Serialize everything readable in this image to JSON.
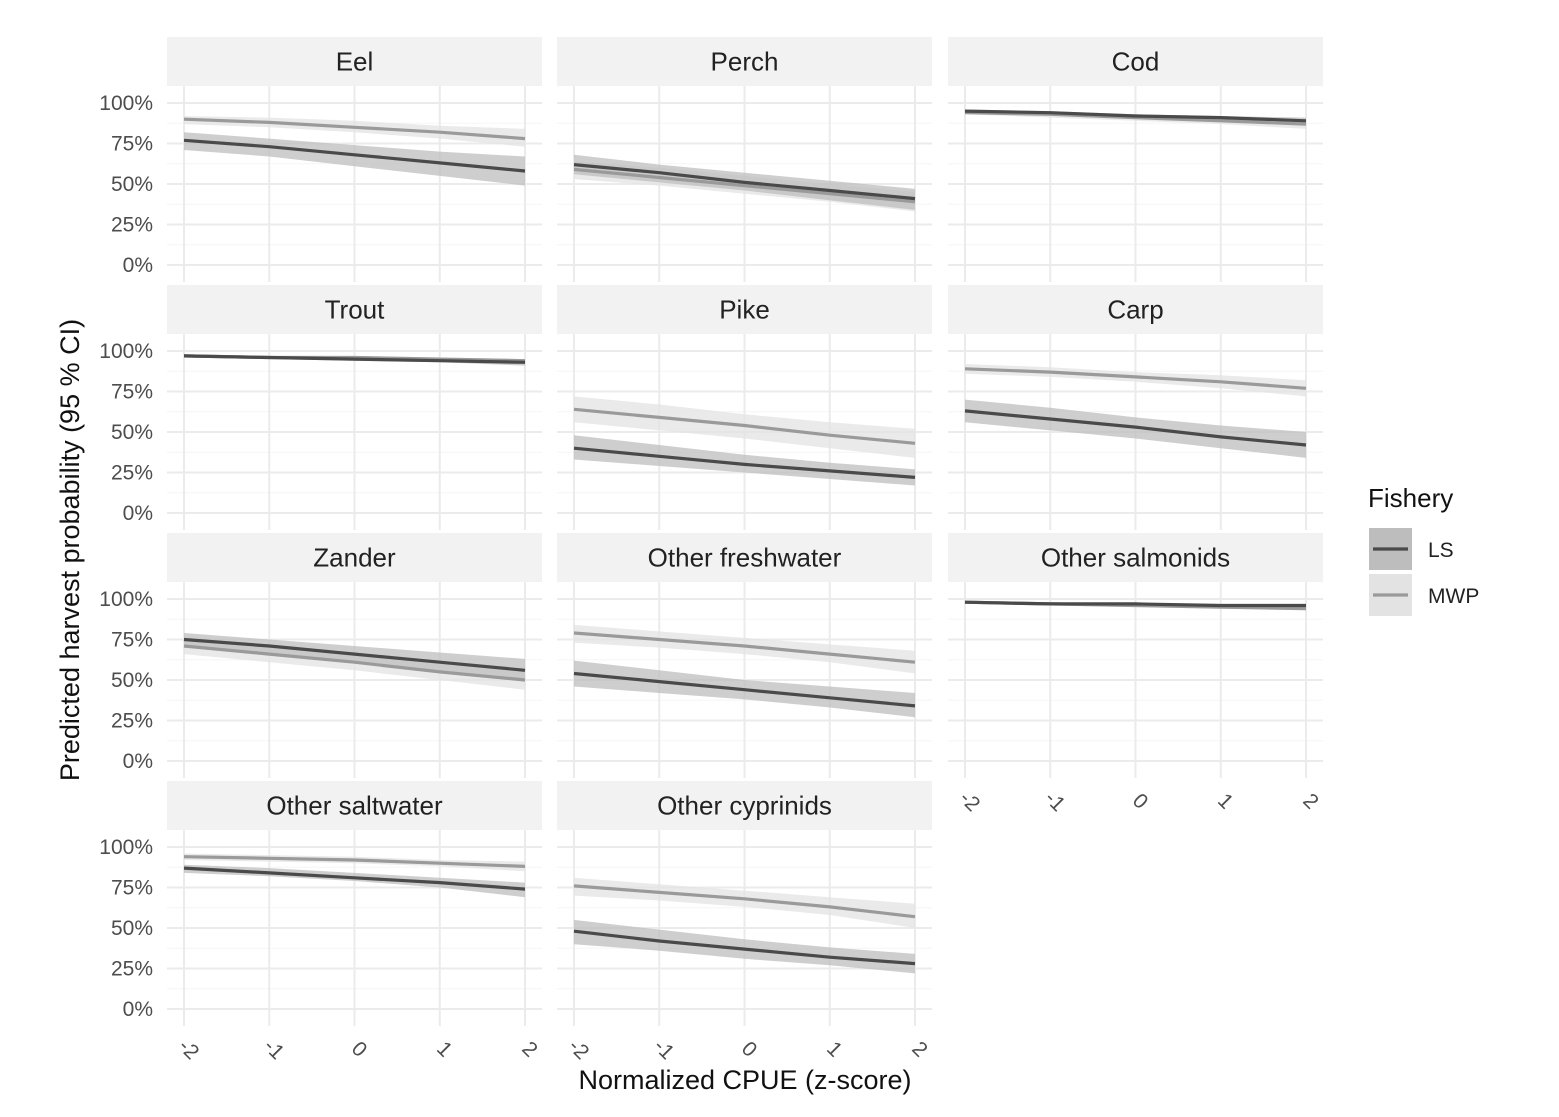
{
  "chart_data": {
    "type": "line",
    "facets": [
      "Eel",
      "Perch",
      "Cod",
      "Trout",
      "Pike",
      "Carp",
      "Zander",
      "Other freshwater",
      "Other salmonids",
      "Other saltwater",
      "Other cyprinids"
    ],
    "xlabel": "Normalized CPUE (z-score)",
    "ylabel": "Predicted harvest probability (95 % CI)",
    "x_ticks": [
      "-2",
      "-1",
      "0",
      "1",
      "2"
    ],
    "y_ticks": [
      "0%",
      "25%",
      "50%",
      "75%",
      "100%"
    ],
    "xlim": [
      -2,
      2
    ],
    "ylim": [
      0,
      1
    ],
    "legend": {
      "title": "Fishery",
      "position": "right",
      "entries": [
        {
          "label": "LS",
          "line_color": "#4a4a4a",
          "band_color": "#bdbdbd"
        },
        {
          "label": "MWP",
          "line_color": "#9a9a9a",
          "band_color": "#e3e3e3"
        }
      ]
    },
    "x": [
      -2,
      -1,
      0,
      1,
      2
    ],
    "panels": [
      {
        "facet": "Eel",
        "series": [
          {
            "name": "LS",
            "y": [
              0.77,
              0.73,
              0.68,
              0.63,
              0.58
            ],
            "lower": [
              0.71,
              0.67,
              0.61,
              0.55,
              0.49
            ],
            "upper": [
              0.82,
              0.78,
              0.74,
              0.7,
              0.67
            ]
          },
          {
            "name": "MWP",
            "y": [
              0.9,
              0.88,
              0.85,
              0.82,
              0.78
            ],
            "lower": [
              0.87,
              0.85,
              0.82,
              0.78,
              0.73
            ],
            "upper": [
              0.92,
              0.91,
              0.89,
              0.86,
              0.84
            ]
          }
        ]
      },
      {
        "facet": "Perch",
        "series": [
          {
            "name": "LS",
            "y": [
              0.62,
              0.57,
              0.51,
              0.46,
              0.41
            ],
            "lower": [
              0.56,
              0.51,
              0.46,
              0.4,
              0.34
            ],
            "upper": [
              0.68,
              0.62,
              0.57,
              0.52,
              0.47
            ]
          },
          {
            "name": "MWP",
            "y": [
              0.59,
              0.54,
              0.49,
              0.44,
              0.39
            ],
            "lower": [
              0.53,
              0.49,
              0.44,
              0.39,
              0.33
            ],
            "upper": [
              0.64,
              0.6,
              0.55,
              0.5,
              0.45
            ]
          }
        ]
      },
      {
        "facet": "Cod",
        "series": [
          {
            "name": "LS",
            "y": [
              0.95,
              0.94,
              0.92,
              0.91,
              0.89
            ],
            "lower": [
              0.94,
              0.93,
              0.91,
              0.89,
              0.87
            ],
            "upper": [
              0.96,
              0.95,
              0.93,
              0.92,
              0.91
            ]
          },
          {
            "name": "MWP",
            "y": [
              0.94,
              0.93,
              0.91,
              0.89,
              0.87
            ],
            "lower": [
              0.93,
              0.91,
              0.89,
              0.87,
              0.84
            ],
            "upper": [
              0.95,
              0.94,
              0.93,
              0.91,
              0.9
            ]
          }
        ]
      },
      {
        "facet": "Trout",
        "series": [
          {
            "name": "LS",
            "y": [
              0.97,
              0.96,
              0.95,
              0.94,
              0.93
            ],
            "lower": [
              0.96,
              0.95,
              0.94,
              0.93,
              0.91
            ],
            "upper": [
              0.98,
              0.97,
              0.96,
              0.95,
              0.94
            ]
          },
          {
            "name": "MWP",
            "y": [
              0.97,
              0.96,
              0.96,
              0.95,
              0.94
            ],
            "lower": [
              0.96,
              0.96,
              0.95,
              0.94,
              0.93
            ],
            "upper": [
              0.98,
              0.97,
              0.97,
              0.96,
              0.95
            ]
          }
        ]
      },
      {
        "facet": "Pike",
        "series": [
          {
            "name": "LS",
            "y": [
              0.4,
              0.35,
              0.3,
              0.26,
              0.22
            ],
            "lower": [
              0.33,
              0.29,
              0.25,
              0.21,
              0.17
            ],
            "upper": [
              0.48,
              0.42,
              0.36,
              0.31,
              0.27
            ]
          },
          {
            "name": "MWP",
            "y": [
              0.64,
              0.59,
              0.54,
              0.48,
              0.43
            ],
            "lower": [
              0.56,
              0.51,
              0.46,
              0.4,
              0.34
            ],
            "upper": [
              0.72,
              0.67,
              0.61,
              0.56,
              0.52
            ]
          }
        ]
      },
      {
        "facet": "Carp",
        "series": [
          {
            "name": "LS",
            "y": [
              0.63,
              0.58,
              0.53,
              0.47,
              0.42
            ],
            "lower": [
              0.56,
              0.51,
              0.46,
              0.4,
              0.34
            ],
            "upper": [
              0.7,
              0.65,
              0.59,
              0.54,
              0.5
            ]
          },
          {
            "name": "MWP",
            "y": [
              0.89,
              0.87,
              0.84,
              0.81,
              0.77
            ],
            "lower": [
              0.86,
              0.84,
              0.81,
              0.77,
              0.72
            ],
            "upper": [
              0.92,
              0.9,
              0.87,
              0.85,
              0.82
            ]
          }
        ]
      },
      {
        "facet": "Zander",
        "series": [
          {
            "name": "LS",
            "y": [
              0.75,
              0.71,
              0.66,
              0.61,
              0.56
            ],
            "lower": [
              0.7,
              0.66,
              0.61,
              0.56,
              0.49
            ],
            "upper": [
              0.79,
              0.75,
              0.71,
              0.67,
              0.63
            ]
          },
          {
            "name": "MWP",
            "y": [
              0.71,
              0.66,
              0.61,
              0.55,
              0.5
            ],
            "lower": [
              0.66,
              0.61,
              0.56,
              0.5,
              0.44
            ],
            "upper": [
              0.75,
              0.71,
              0.66,
              0.61,
              0.56
            ]
          }
        ]
      },
      {
        "facet": "Other freshwater",
        "series": [
          {
            "name": "LS",
            "y": [
              0.54,
              0.49,
              0.44,
              0.39,
              0.34
            ],
            "lower": [
              0.46,
              0.42,
              0.38,
              0.33,
              0.27
            ],
            "upper": [
              0.62,
              0.56,
              0.5,
              0.46,
              0.42
            ]
          },
          {
            "name": "MWP",
            "y": [
              0.79,
              0.75,
              0.71,
              0.66,
              0.61
            ],
            "lower": [
              0.73,
              0.7,
              0.66,
              0.61,
              0.54
            ],
            "upper": [
              0.84,
              0.8,
              0.76,
              0.72,
              0.68
            ]
          }
        ]
      },
      {
        "facet": "Other salmonids",
        "series": [
          {
            "name": "LS",
            "y": [
              0.98,
              0.97,
              0.97,
              0.96,
              0.96
            ],
            "lower": [
              0.97,
              0.97,
              0.96,
              0.95,
              0.94
            ],
            "upper": [
              0.99,
              0.98,
              0.97,
              0.97,
              0.97
            ]
          },
          {
            "name": "MWP",
            "y": [
              0.98,
              0.97,
              0.96,
              0.95,
              0.94
            ],
            "lower": [
              0.97,
              0.96,
              0.95,
              0.94,
              0.93
            ],
            "upper": [
              0.99,
              0.98,
              0.97,
              0.96,
              0.96
            ]
          }
        ]
      },
      {
        "facet": "Other saltwater",
        "series": [
          {
            "name": "LS",
            "y": [
              0.87,
              0.84,
              0.81,
              0.78,
              0.74
            ],
            "lower": [
              0.84,
              0.82,
              0.79,
              0.75,
              0.69
            ],
            "upper": [
              0.89,
              0.87,
              0.84,
              0.81,
              0.78
            ]
          },
          {
            "name": "MWP",
            "y": [
              0.94,
              0.93,
              0.92,
              0.9,
              0.88
            ],
            "lower": [
              0.92,
              0.91,
              0.9,
              0.88,
              0.85
            ],
            "upper": [
              0.96,
              0.95,
              0.94,
              0.92,
              0.91
            ]
          }
        ]
      },
      {
        "facet": "Other cyprinids",
        "series": [
          {
            "name": "LS",
            "y": [
              0.48,
              0.42,
              0.37,
              0.32,
              0.28
            ],
            "lower": [
              0.4,
              0.36,
              0.31,
              0.27,
              0.22
            ],
            "upper": [
              0.55,
              0.49,
              0.43,
              0.38,
              0.34
            ]
          },
          {
            "name": "MWP",
            "y": [
              0.76,
              0.72,
              0.68,
              0.63,
              0.57
            ],
            "lower": [
              0.7,
              0.67,
              0.63,
              0.58,
              0.5
            ],
            "upper": [
              0.81,
              0.77,
              0.73,
              0.69,
              0.65
            ]
          }
        ]
      }
    ]
  }
}
